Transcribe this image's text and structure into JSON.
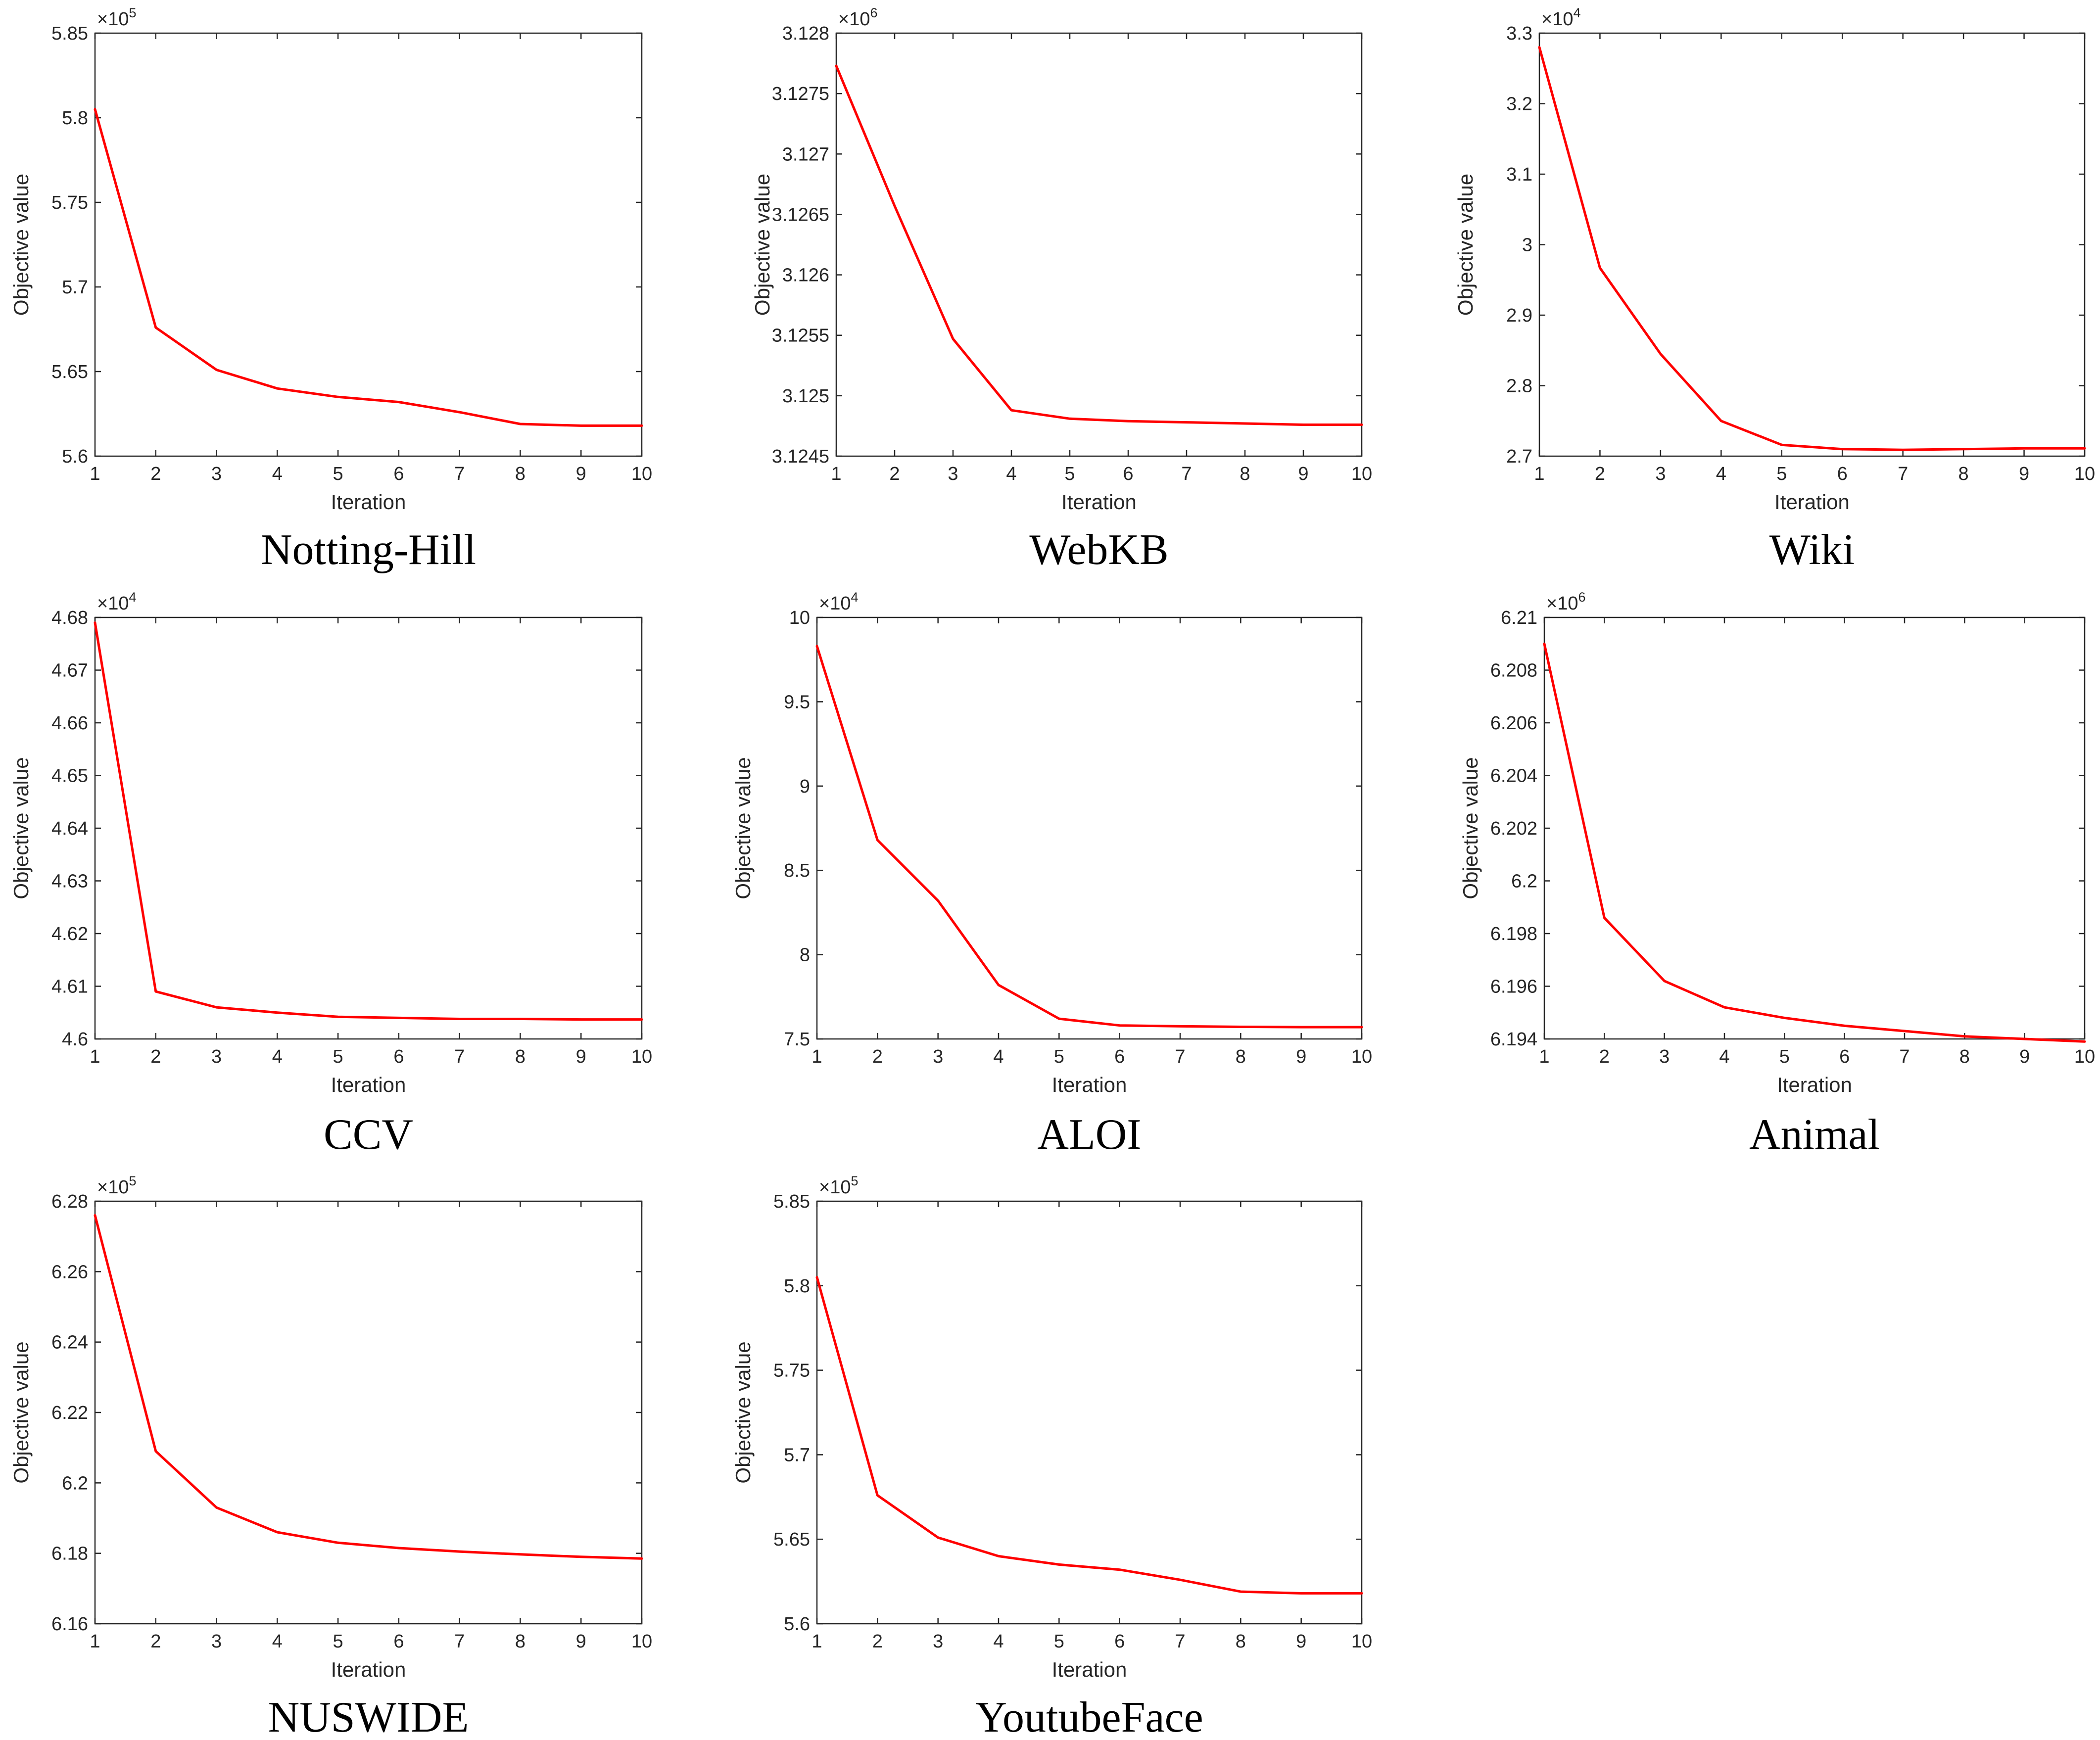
{
  "colors": {
    "series": "#ff0000",
    "axis": "#262626",
    "caption": "#000000"
  },
  "chart_data": [
    {
      "type": "line",
      "caption": "Notting-Hill",
      "xlabel": "Iteration",
      "ylabel": "Objective value",
      "exponent_base": "×10",
      "exponent_power": "5",
      "x": [
        1,
        2,
        3,
        4,
        5,
        6,
        7,
        8,
        9,
        10
      ],
      "xlim": [
        1,
        10
      ],
      "xticks": [
        "1",
        "2",
        "3",
        "4",
        "5",
        "6",
        "7",
        "8",
        "9",
        "10"
      ],
      "ylim": [
        5.6,
        5.85
      ],
      "yticks": [
        "5.6",
        "5.65",
        "5.7",
        "5.75",
        "5.8",
        "5.85"
      ],
      "series": [
        {
          "values": [
            5.805,
            5.676,
            5.651,
            5.64,
            5.635,
            5.632,
            5.626,
            5.619,
            5.618,
            5.618
          ]
        }
      ],
      "grid": false,
      "legend": "none"
    },
    {
      "type": "line",
      "caption": "WebKB",
      "xlabel": "Iteration",
      "ylabel": "Objective value",
      "exponent_base": "×10",
      "exponent_power": "6",
      "x": [
        1,
        2,
        3,
        4,
        5,
        6,
        7,
        8,
        9,
        10
      ],
      "xlim": [
        1,
        10
      ],
      "xticks": [
        "1",
        "2",
        "3",
        "4",
        "5",
        "6",
        "7",
        "8",
        "9",
        "10"
      ],
      "ylim": [
        3.1245,
        3.128
      ],
      "yticks": [
        "3.1245",
        "3.125",
        "3.1255",
        "3.126",
        "3.1265",
        "3.127",
        "3.1275",
        "3.128"
      ],
      "series": [
        {
          "values": [
            3.12773,
            3.12657,
            3.12547,
            3.12488,
            3.12481,
            3.12479,
            3.12478,
            3.12477,
            3.12476,
            3.12476
          ]
        }
      ],
      "grid": false,
      "legend": "none"
    },
    {
      "type": "line",
      "caption": "Wiki",
      "xlabel": "Iteration",
      "ylabel": "Objective value",
      "exponent_base": "×10",
      "exponent_power": "4",
      "x": [
        1,
        2,
        3,
        4,
        5,
        6,
        7,
        8,
        9,
        10
      ],
      "xlim": [
        1,
        10
      ],
      "xticks": [
        "1",
        "2",
        "3",
        "4",
        "5",
        "6",
        "7",
        "8",
        "9",
        "10"
      ],
      "ylim": [
        2.7,
        3.3
      ],
      "yticks": [
        "2.7",
        "2.8",
        "2.9",
        "3",
        "3.1",
        "3.2",
        "3.3"
      ],
      "series": [
        {
          "values": [
            3.28,
            2.967,
            2.845,
            2.75,
            2.716,
            2.71,
            2.709,
            2.71,
            2.711,
            2.711
          ]
        }
      ],
      "grid": false,
      "legend": "none"
    },
    {
      "type": "line",
      "caption": "CCV",
      "xlabel": "Iteration",
      "ylabel": "Objective value",
      "exponent_base": "×10",
      "exponent_power": "4",
      "x": [
        1,
        2,
        3,
        4,
        5,
        6,
        7,
        8,
        9,
        10
      ],
      "xlim": [
        1,
        10
      ],
      "xticks": [
        "1",
        "2",
        "3",
        "4",
        "5",
        "6",
        "7",
        "8",
        "9",
        "10"
      ],
      "ylim": [
        4.6,
        4.68
      ],
      "yticks": [
        "4.6",
        "4.61",
        "4.62",
        "4.63",
        "4.64",
        "4.65",
        "4.66",
        "4.67",
        "4.68"
      ],
      "series": [
        {
          "values": [
            4.679,
            4.609,
            4.606,
            4.605,
            4.6042,
            4.604,
            4.6038,
            4.6038,
            4.6037,
            4.6037
          ]
        }
      ],
      "grid": false,
      "legend": "none"
    },
    {
      "type": "line",
      "caption": "ALOI",
      "xlabel": "Iteration",
      "ylabel": "Objective value",
      "exponent_base": "×10",
      "exponent_power": "4",
      "x": [
        1,
        2,
        3,
        4,
        5,
        6,
        7,
        8,
        9,
        10
      ],
      "xlim": [
        1,
        10
      ],
      "xticks": [
        "1",
        "2",
        "3",
        "4",
        "5",
        "6",
        "7",
        "8",
        "9",
        "10"
      ],
      "ylim": [
        7.5,
        10
      ],
      "yticks": [
        "7.5",
        "8",
        "8.5",
        "9",
        "9.5",
        "10"
      ],
      "series": [
        {
          "values": [
            9.83,
            8.68,
            8.32,
            7.82,
            7.62,
            7.58,
            7.575,
            7.572,
            7.57,
            7.57
          ]
        }
      ],
      "grid": false,
      "legend": "none"
    },
    {
      "type": "line",
      "caption": "Animal",
      "xlabel": "Iteration",
      "ylabel": "Objective value",
      "exponent_base": "×10",
      "exponent_power": "6",
      "x": [
        1,
        2,
        3,
        4,
        5,
        6,
        7,
        8,
        9,
        10
      ],
      "xlim": [
        1,
        10
      ],
      "xticks": [
        "1",
        "2",
        "3",
        "4",
        "5",
        "6",
        "7",
        "8",
        "9",
        "10"
      ],
      "ylim": [
        6.194,
        6.21
      ],
      "yticks": [
        "6.194",
        "6.196",
        "6.198",
        "6.2",
        "6.202",
        "6.204",
        "6.206",
        "6.208",
        "6.21"
      ],
      "series": [
        {
          "values": [
            6.209,
            6.1986,
            6.1962,
            6.1952,
            6.1948,
            6.1945,
            6.1943,
            6.1941,
            6.194,
            6.1939
          ]
        }
      ],
      "grid": false,
      "legend": "none"
    },
    {
      "type": "line",
      "caption": "NUSWIDE",
      "xlabel": "Iteration",
      "ylabel": "Objective value",
      "exponent_base": "×10",
      "exponent_power": "5",
      "x": [
        1,
        2,
        3,
        4,
        5,
        6,
        7,
        8,
        9,
        10
      ],
      "xlim": [
        1,
        10
      ],
      "xticks": [
        "1",
        "2",
        "3",
        "4",
        "5",
        "6",
        "7",
        "8",
        "9",
        "10"
      ],
      "ylim": [
        6.16,
        6.28
      ],
      "yticks": [
        "6.16",
        "6.18",
        "6.2",
        "6.22",
        "6.24",
        "6.26",
        "6.28"
      ],
      "series": [
        {
          "values": [
            6.276,
            6.209,
            6.193,
            6.186,
            6.183,
            6.1815,
            6.1805,
            6.1797,
            6.179,
            6.1785
          ]
        }
      ],
      "grid": false,
      "legend": "none"
    },
    {
      "type": "line",
      "caption": "YoutubeFace",
      "xlabel": "Iteration",
      "ylabel": "Objective value",
      "exponent_base": "×10",
      "exponent_power": "5",
      "x": [
        1,
        2,
        3,
        4,
        5,
        6,
        7,
        8,
        9,
        10
      ],
      "xlim": [
        1,
        10
      ],
      "xticks": [
        "1",
        "2",
        "3",
        "4",
        "5",
        "6",
        "7",
        "8",
        "9",
        "10"
      ],
      "ylim": [
        5.6,
        5.85
      ],
      "yticks": [
        "5.6",
        "5.65",
        "5.7",
        "5.75",
        "5.8",
        "5.85"
      ],
      "series": [
        {
          "values": [
            5.805,
            5.676,
            5.651,
            5.64,
            5.635,
            5.632,
            5.626,
            5.619,
            5.618,
            5.618
          ]
        }
      ],
      "grid": false,
      "legend": "none"
    }
  ]
}
